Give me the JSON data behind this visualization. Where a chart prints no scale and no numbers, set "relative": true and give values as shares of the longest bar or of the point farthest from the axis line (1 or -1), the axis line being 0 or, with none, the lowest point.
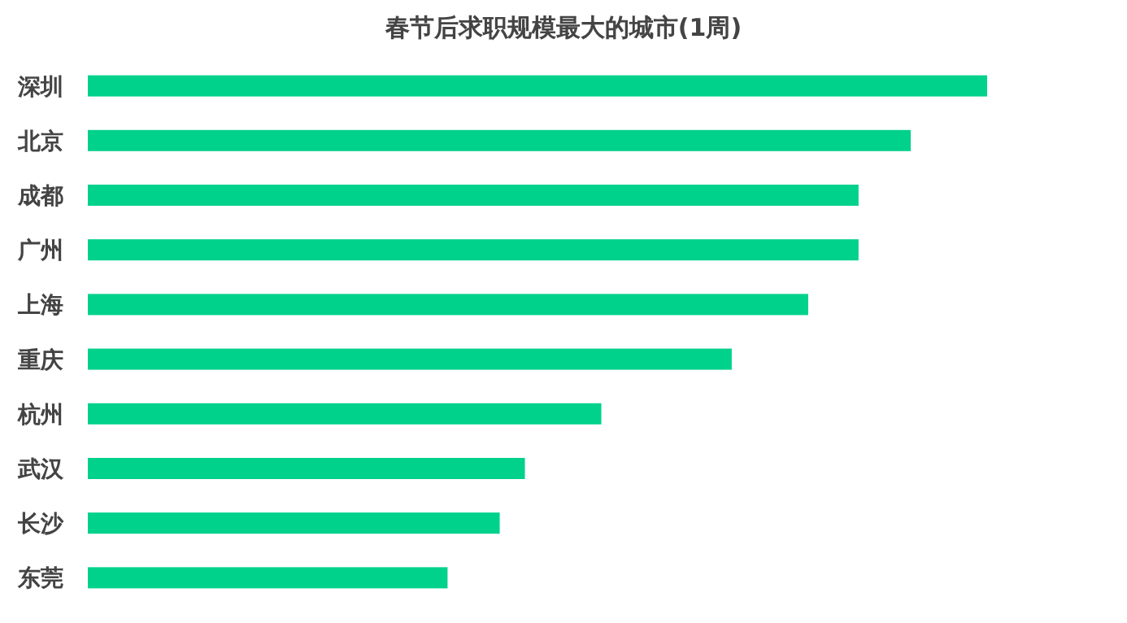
{
  "chart_data": {
    "type": "bar",
    "orientation": "horizontal",
    "relative": true,
    "title": "春节后求职规模最大的城市(1周)",
    "categories": [
      "深圳",
      "北京",
      "成都",
      "广州",
      "上海",
      "重庆",
      "杭州",
      "武汉",
      "长沙",
      "东莞"
    ],
    "values": [
      1,
      0.915,
      0.857,
      0.857,
      0.801,
      0.716,
      0.571,
      0.486,
      0.458,
      0.4
    ],
    "color": "#00d18b"
  }
}
